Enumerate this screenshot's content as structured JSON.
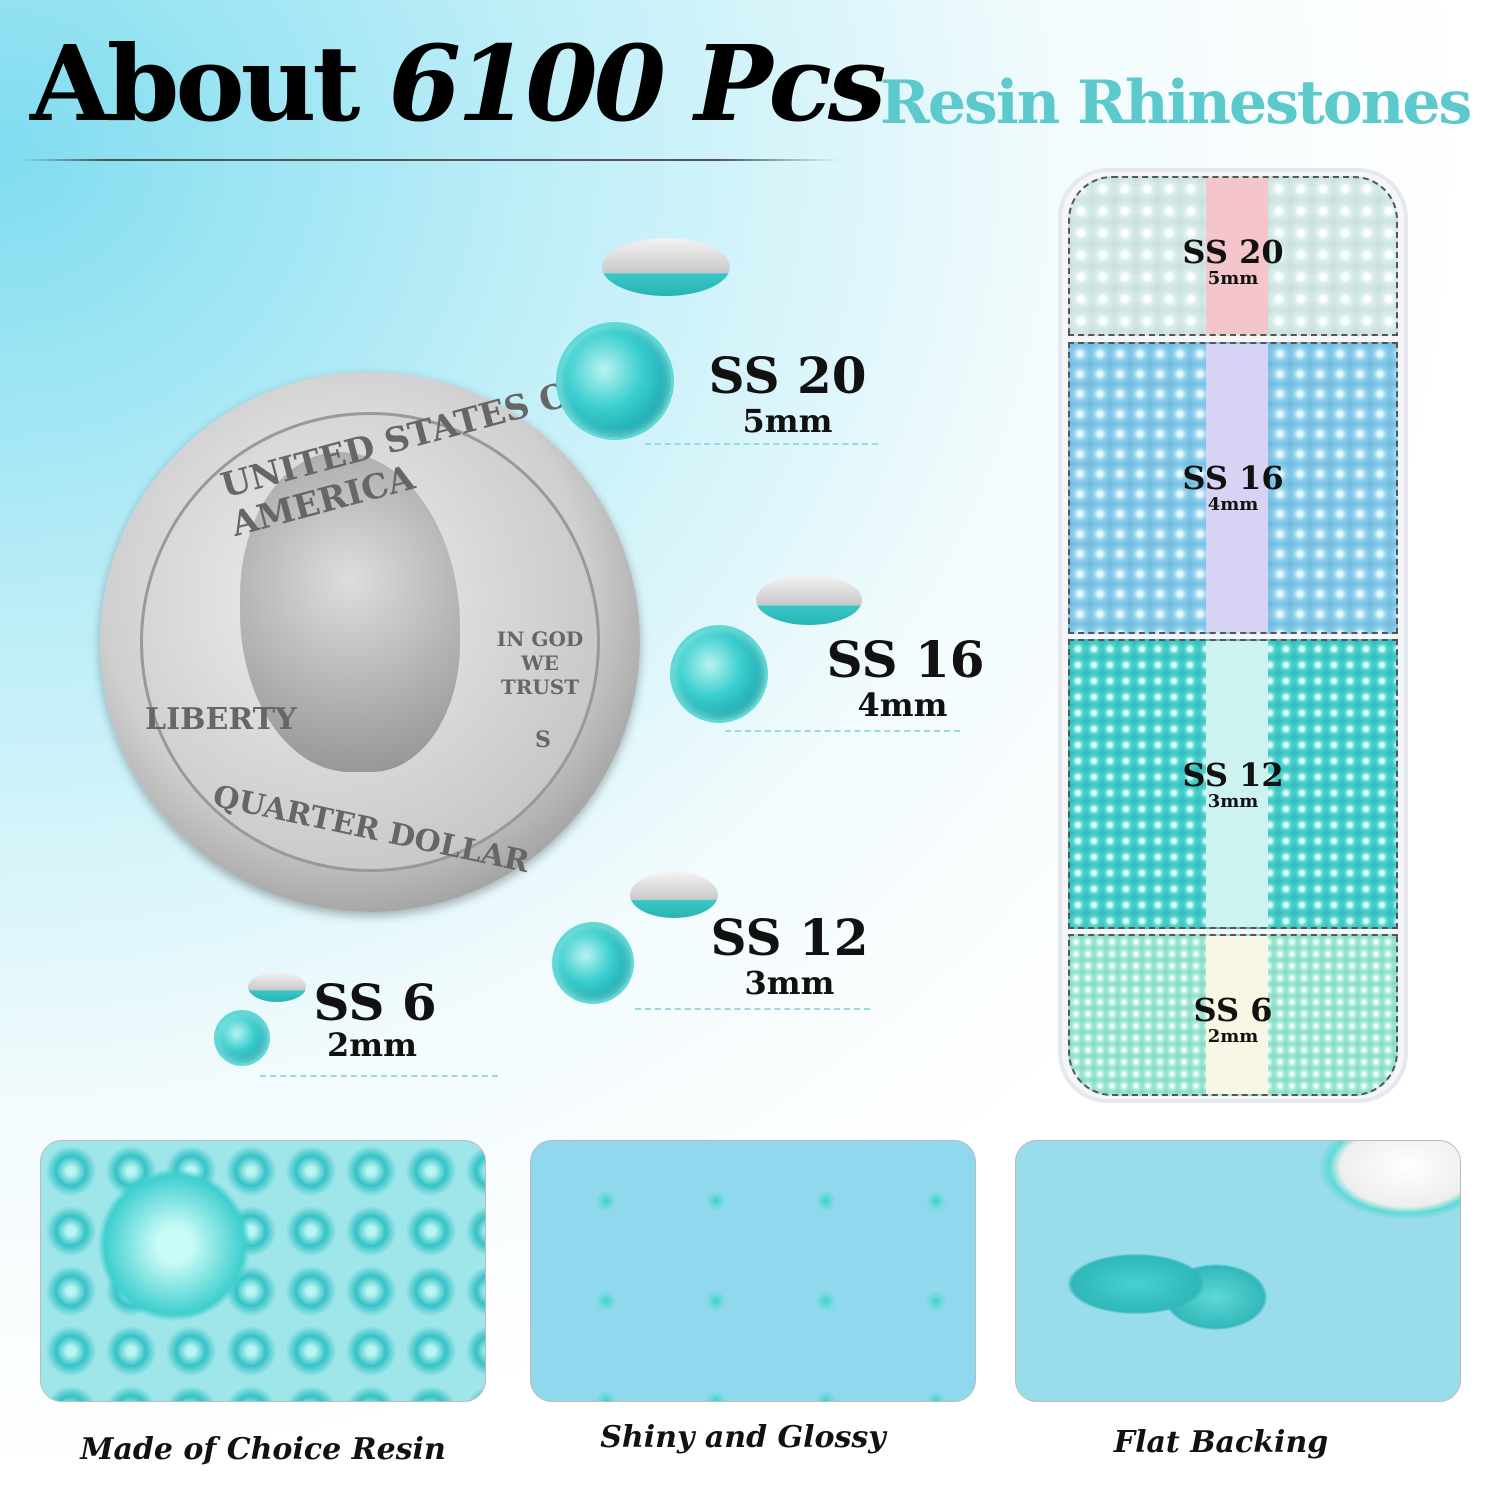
{
  "header": {
    "title_plain": "About",
    "title_italic": "6100 Pcs",
    "subtitle": "Resin Rhinestones"
  },
  "coin": {
    "top_text": "UNITED STATES OF AMERICA",
    "motto": "IN GOD WE TRUST",
    "liberty": "LIBERTY",
    "bottom_text": "QUARTER DOLLAR",
    "mint": "S"
  },
  "sizes": [
    {
      "label": "SS 20",
      "mm": "5mm"
    },
    {
      "label": "SS 16",
      "mm": "4mm"
    },
    {
      "label": "SS 12",
      "mm": "3mm"
    },
    {
      "label": "SS 6",
      "mm": "2mm"
    }
  ],
  "box": [
    {
      "label": "SS 20",
      "mm": "5mm",
      "color": "#f2c9cf"
    },
    {
      "label": "SS 16",
      "mm": "4mm",
      "color": "#8fd0ee"
    },
    {
      "label": "SS 12",
      "mm": "3mm",
      "color": "#4fd3cf"
    },
    {
      "label": "SS 6",
      "mm": "2mm",
      "color": "#a9ecd9"
    }
  ],
  "features": [
    {
      "caption": "Made of Choice Resin"
    },
    {
      "caption": "Shiny and Glossy"
    },
    {
      "caption": "Flat Backing"
    }
  ],
  "colors": {
    "accent": "#5cc9cc",
    "stone": "#3ccfcf"
  }
}
